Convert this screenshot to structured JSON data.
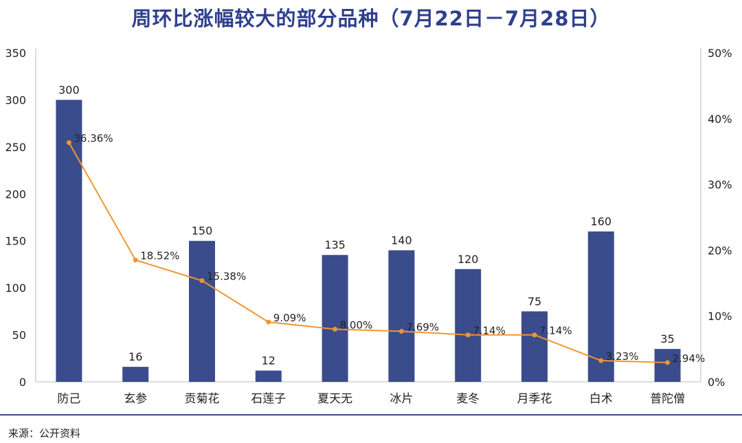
{
  "chart_data": {
    "type": "bar+line",
    "title": "周环比涨幅较大的部分品种（7月22日－7月28日）",
    "categories": [
      "防己",
      "玄参",
      "贡菊花",
      "石莲子",
      "夏天无",
      "冰片",
      "麦冬",
      "月季花",
      "白术",
      "普陀僧"
    ],
    "series": [
      {
        "type": "bar",
        "axis": "left",
        "color": "#3b4c8c",
        "values": [
          300,
          16,
          150,
          12,
          135,
          140,
          120,
          75,
          160,
          35
        ],
        "labels": [
          "300",
          "16",
          "150",
          "12",
          "135",
          "140",
          "120",
          "75",
          "160",
          "35"
        ]
      },
      {
        "type": "line",
        "axis": "right",
        "color": "#f0962e",
        "values": [
          36.36,
          18.52,
          15.38,
          9.09,
          8.0,
          7.69,
          7.14,
          7.14,
          3.23,
          2.94
        ],
        "labels": [
          "36.36%",
          "18.52%",
          "15.38%",
          "9.09%",
          "8.00%",
          "7.69%",
          "7.14%",
          "7.14%",
          "3.23%",
          "2.94%"
        ]
      }
    ],
    "y_left": {
      "range": [
        0,
        350
      ],
      "ticks": [
        "0",
        "50",
        "100",
        "150",
        "200",
        "250",
        "300",
        "350"
      ]
    },
    "y_right": {
      "range": [
        0,
        50
      ],
      "ticks": [
        "0%",
        "10%",
        "20%",
        "30%",
        "40%",
        "50%"
      ]
    },
    "grid": false,
    "legend": "none"
  },
  "source": "来源：公开资料"
}
